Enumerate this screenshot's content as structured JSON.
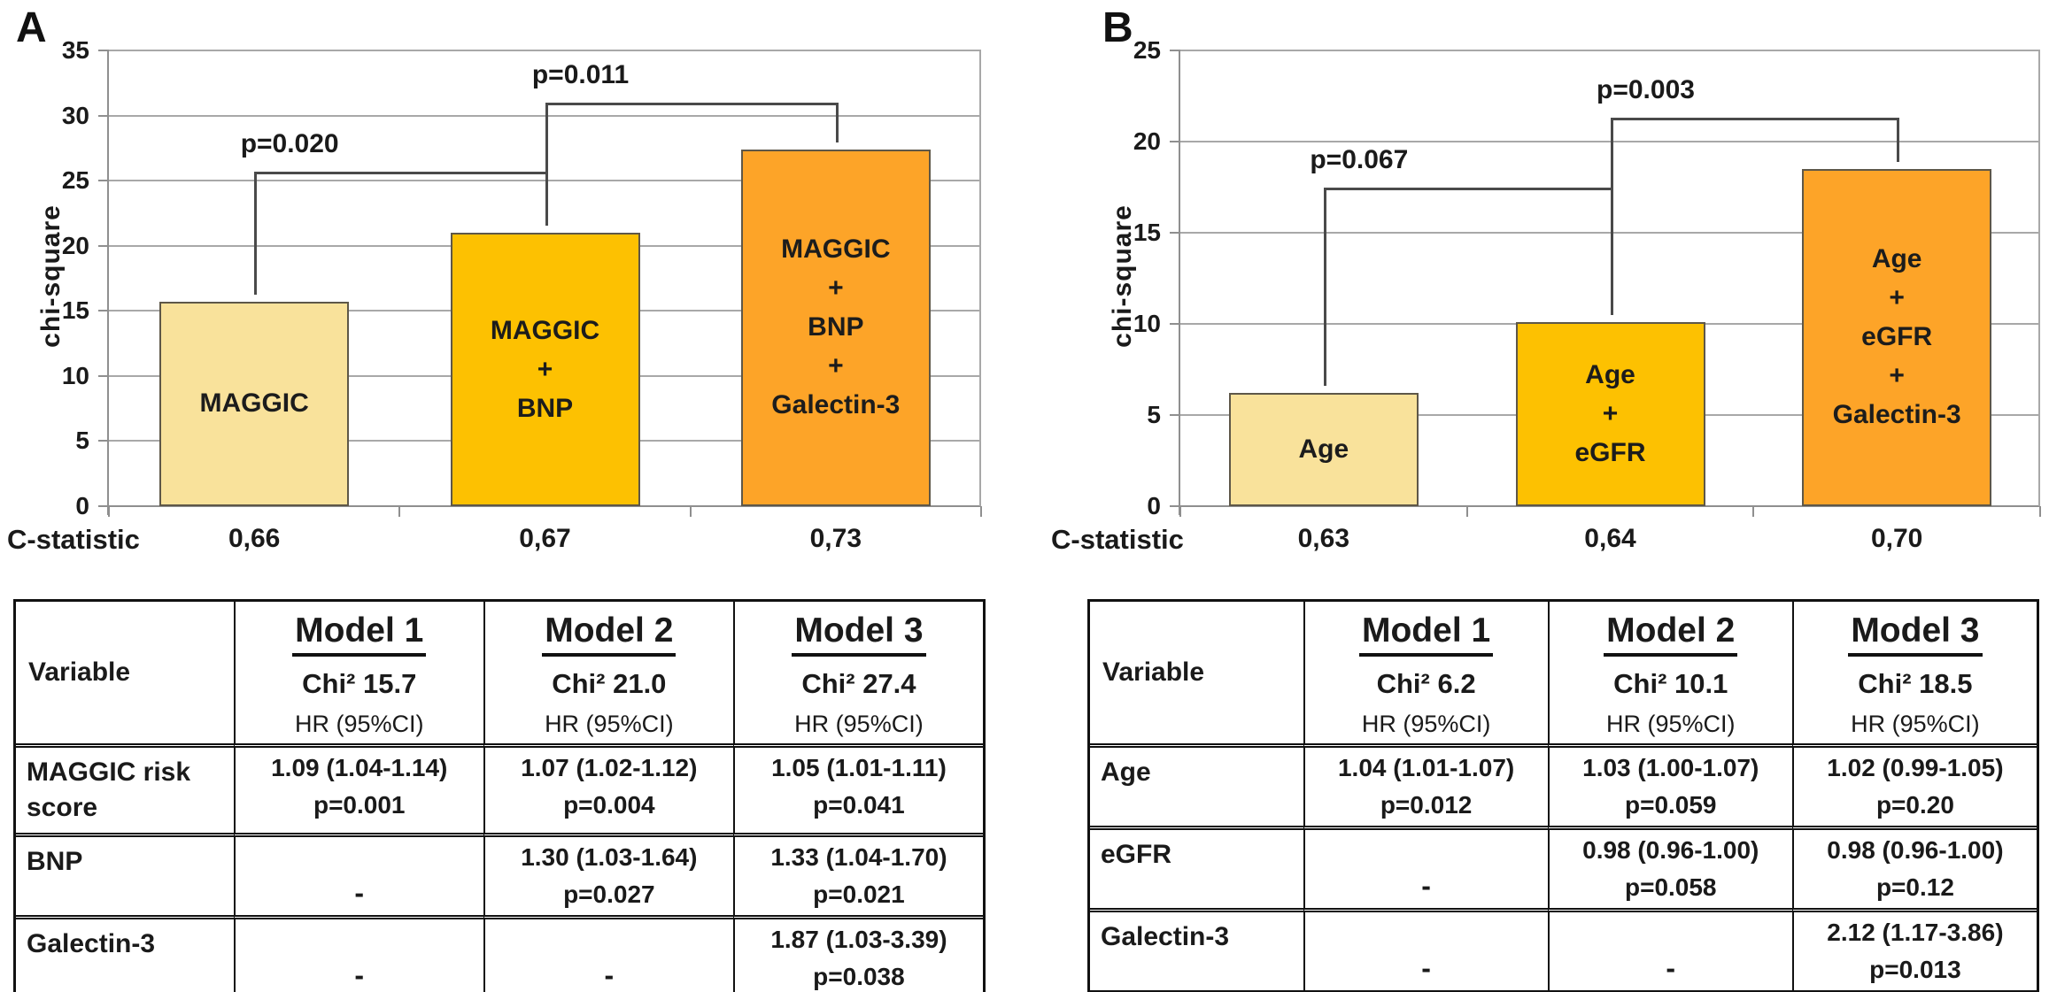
{
  "figure": {
    "panels": [
      {
        "label": "A"
      },
      {
        "label": "B"
      }
    ]
  },
  "chart_data": [
    {
      "type": "bar",
      "ylabel": "chi-square",
      "ylim": [
        0,
        35
      ],
      "ytick_step": 5,
      "grid": true,
      "legend": "none",
      "categories": [
        [
          "MAGGIC"
        ],
        [
          "MAGGIC",
          "+",
          "BNP"
        ],
        [
          "MAGGIC",
          "+",
          "BNP",
          "+",
          "Galectin-3"
        ]
      ],
      "values": [
        15.7,
        21.0,
        27.4
      ],
      "bar_colors": [
        "#F9E29B",
        "#FDC101",
        "#FDA428"
      ],
      "c_statistic": {
        "label": "C-statistic",
        "values": [
          "0,66",
          "0,67",
          "0,73"
        ]
      },
      "comparisons": [
        {
          "from": 0,
          "to": 1,
          "level": 25.7,
          "label": "p=0.020"
        },
        {
          "from": 1,
          "to": 2,
          "level": 31.0,
          "label": "p=0.011"
        }
      ]
    },
    {
      "type": "bar",
      "ylabel": "chi-square",
      "ylim": [
        0,
        25
      ],
      "ytick_step": 5,
      "grid": true,
      "legend": "none",
      "categories": [
        [
          "Age"
        ],
        [
          "Age",
          "+",
          "eGFR"
        ],
        [
          "Age",
          "+",
          "eGFR",
          "+",
          "Galectin-3"
        ]
      ],
      "values": [
        6.2,
        10.1,
        18.5
      ],
      "bar_colors": [
        "#F9E29B",
        "#FDC101",
        "#FDA428"
      ],
      "c_statistic": {
        "label": "C-statistic",
        "values": [
          "0,63",
          "0,64",
          "0,70"
        ]
      },
      "comparisons": [
        {
          "from": 0,
          "to": 1,
          "level": 17.5,
          "label": "p=0.067"
        },
        {
          "from": 1,
          "to": 2,
          "level": 21.3,
          "label": "p=0.003"
        }
      ]
    }
  ],
  "tables": [
    {
      "header": {
        "variable": "Variable",
        "models": [
          {
            "name": "Model 1",
            "chi2": "Chi² 15.7",
            "hr": "HR (95%CI)"
          },
          {
            "name": "Model 2",
            "chi2": "Chi² 21.0",
            "hr": "HR (95%CI)"
          },
          {
            "name": "Model 3",
            "chi2": "Chi² 27.4",
            "hr": "HR (95%CI)"
          }
        ]
      },
      "rows": [
        {
          "variable": "MAGGIC risk score",
          "cells": [
            [
              "1.09 (1.04-1.14)",
              "p=0.001"
            ],
            [
              "1.07 (1.02-1.12)",
              "p=0.004"
            ],
            [
              "1.05 (1.01-1.11)",
              "p=0.041"
            ]
          ]
        },
        {
          "variable": "BNP",
          "cells": [
            [
              "-"
            ],
            [
              "1.30 (1.03-1.64)",
              "p=0.027"
            ],
            [
              "1.33 (1.04-1.70)",
              "p=0.021"
            ]
          ]
        },
        {
          "variable": "Galectin-3",
          "cells": [
            [
              "-"
            ],
            [
              "-"
            ],
            [
              "1.87 (1.03-3.39)",
              "p=0.038"
            ]
          ]
        }
      ]
    },
    {
      "header": {
        "variable": "Variable",
        "models": [
          {
            "name": "Model 1",
            "chi2": "Chi² 6.2",
            "hr": "HR (95%CI)"
          },
          {
            "name": "Model 2",
            "chi2": "Chi² 10.1",
            "hr": "HR (95%CI)"
          },
          {
            "name": "Model 3",
            "chi2": "Chi² 18.5",
            "hr": "HR (95%CI)"
          }
        ]
      },
      "rows": [
        {
          "variable": "Age",
          "cells": [
            [
              "1.04 (1.01-1.07)",
              "p=0.012"
            ],
            [
              "1.03 (1.00-1.07)",
              "p=0.059"
            ],
            [
              "1.02 (0.99-1.05)",
              "p=0.20"
            ]
          ]
        },
        {
          "variable": "eGFR",
          "cells": [
            [
              "-"
            ],
            [
              "0.98 (0.96-1.00)",
              "p=0.058"
            ],
            [
              "0.98 (0.96-1.00)",
              "p=0.12"
            ]
          ]
        },
        {
          "variable": "Galectin-3",
          "cells": [
            [
              "-"
            ],
            [
              "-"
            ],
            [
              "2.12 (1.17-3.86)",
              "p=0.013"
            ]
          ]
        }
      ]
    }
  ]
}
